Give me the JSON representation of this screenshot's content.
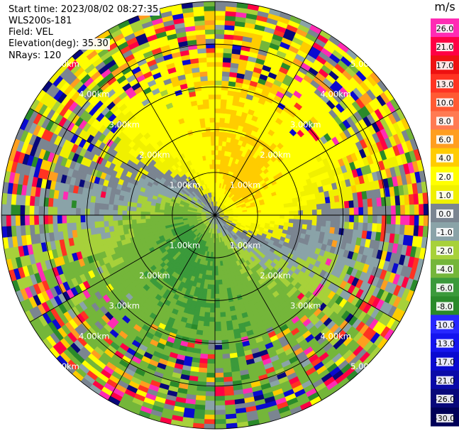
{
  "info": {
    "start_time": "Start time: 2023/08/02 08:27:35",
    "site": "WLS200s-181",
    "field": "Field: VEL",
    "elevation": "Elevation(deg): 35.30",
    "nrays": "NRays: 120"
  },
  "chart_data": {
    "type": "heatmap",
    "projection": "polar-ppi",
    "field": "VEL",
    "nrays": 120,
    "max_range_km": 5.0,
    "range_rings_km": [
      1.0,
      2.0,
      3.0,
      4.0,
      5.0
    ],
    "ring_labels": [
      "1.00km",
      "2.00km",
      "3.00km",
      "4.00km",
      "5.00km"
    ],
    "spokes_deg": [
      0,
      30,
      60,
      90,
      120,
      150,
      180,
      210,
      240,
      270,
      300,
      330
    ],
    "colorbar": {
      "unit": "m/s",
      "ticks": [
        "26.0",
        "21.0",
        "17.0",
        "13.0",
        "10.0",
        "8.0",
        "6.0",
        "4.0",
        "2.0",
        "1.0",
        "0.0",
        "-1.0",
        "-2.0",
        "-4.0",
        "-6.0",
        "-8.0",
        "-10.0",
        "-13.0",
        "-17.0",
        "-21.0",
        "-26.0",
        "-30.0"
      ],
      "tick_values": [
        26,
        21,
        17,
        13,
        10,
        8,
        6,
        4,
        2,
        1,
        0,
        -1,
        -2,
        -4,
        -6,
        -8,
        -10,
        -13,
        -17,
        -21,
        -26,
        -30
      ],
      "colors": [
        "#ff2bb4",
        "#ff0044",
        "#ee1111",
        "#ff3322",
        "#ff5a33",
        "#ff7a52",
        "#ff9e1f",
        "#ffcc00",
        "#ffff00",
        "#f0f000",
        "#7b8591",
        "#8aa3a8",
        "#a7d13a",
        "#74b63a",
        "#3b9a3b",
        "#2a8a2a",
        "#2828ff",
        "#1515ee",
        "#0a0ad0",
        "#0a0aa8",
        "#08087a",
        "#000058"
      ]
    },
    "velocity_pattern": {
      "near_axis_deg": 60,
      "near_amplitude": 5.5,
      "far_axis_deg": 10,
      "far_amplitude": 4.0,
      "noise_onset_km": 2.6
    }
  }
}
